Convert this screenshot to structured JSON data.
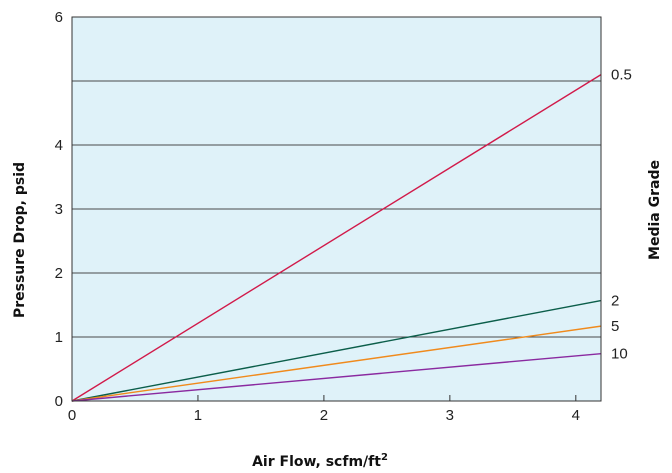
{
  "chart_data": {
    "type": "line",
    "title": "",
    "xlabel": "Air Flow, scfm/ft",
    "xlabel_superscript": "2",
    "ylabel": "Pressure Drop, psid",
    "right_label": "Media Grade",
    "xlim": [
      0,
      4.2
    ],
    "ylim": [
      0,
      6
    ],
    "xticks": [
      0,
      1,
      2,
      3,
      4
    ],
    "yticks": [
      0,
      1,
      2,
      3,
      4,
      6
    ],
    "gridlines_y": [
      1,
      2,
      3,
      4,
      5
    ],
    "grid": true,
    "background_color": "#dff2f9",
    "series": [
      {
        "name": "0.5",
        "color": "#d11a4a",
        "x": [
          0,
          4.2
        ],
        "y": [
          0,
          5.1
        ]
      },
      {
        "name": "2",
        "color": "#0b5e4a",
        "x": [
          0,
          4.2
        ],
        "y": [
          0,
          1.57
        ]
      },
      {
        "name": "5",
        "color": "#f08a1c",
        "x": [
          0,
          4.2
        ],
        "y": [
          0,
          1.17
        ]
      },
      {
        "name": "10",
        "color": "#8a2aa0",
        "x": [
          0,
          4.2
        ],
        "y": [
          0,
          0.74
        ]
      }
    ]
  }
}
